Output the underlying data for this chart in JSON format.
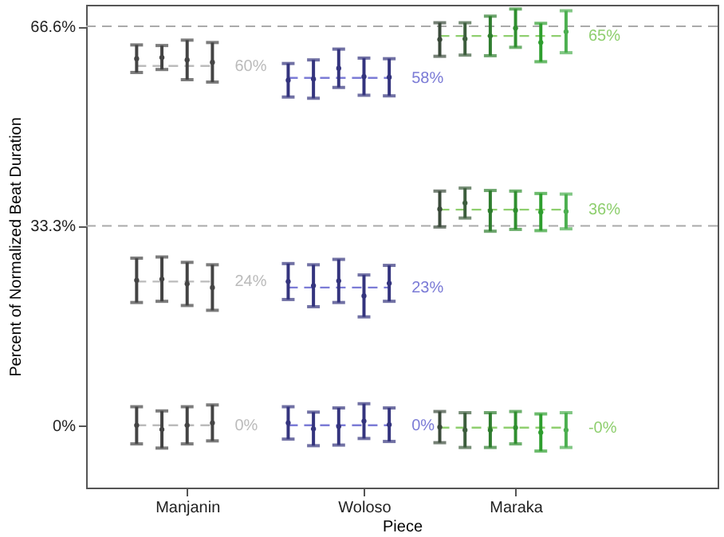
{
  "chart_data": {
    "type": "scatter",
    "xlabel": "Piece",
    "ylabel": "Percent of Normalized Beat Duration",
    "categories": [
      null,
      null,
      null,
      null,
      "Manjanin",
      null,
      null,
      null,
      null,
      null,
      null,
      "Woloso",
      null,
      null,
      null,
      null,
      null,
      "Maraka",
      null,
      null,
      null,
      null,
      null,
      null,
      null,
      null
    ],
    "ylim": [
      -10.4,
      70.2
    ],
    "yticks": [
      {
        "value": 0,
        "label": "0%"
      },
      {
        "value": 33.3,
        "label": "33.3%"
      },
      {
        "value": 66.6,
        "label": "66.6%"
      }
    ],
    "grid": false,
    "marker": "circle",
    "line_style": "dashed",
    "series": [
      {
        "type": "line",
        "marker": "none",
        "color": "#bbbbbb",
        "values": [
          null,
          null,
          60,
          60,
          60,
          60,
          null,
          null,
          null,
          null,
          null,
          null,
          null,
          null,
          null,
          null,
          null,
          null,
          null,
          null,
          null,
          null,
          null,
          null,
          null,
          null
        ],
        "value_labels": [
          null,
          null,
          null,
          null,
          null,
          "60%",
          null,
          null,
          null,
          null,
          null,
          null,
          null,
          null,
          null,
          null,
          null,
          null,
          null,
          null,
          null,
          null,
          null,
          null,
          null,
          null
        ]
      },
      {
        "type": "line",
        "marker": "none",
        "color": "#bbbbbb",
        "values": [
          null,
          null,
          24,
          24,
          24,
          24,
          null,
          null,
          null,
          null,
          null,
          null,
          null,
          null,
          null,
          null,
          null,
          null,
          null,
          null,
          null,
          null,
          null,
          null,
          null,
          null
        ],
        "value_labels": [
          null,
          null,
          null,
          null,
          null,
          "24%",
          null,
          null,
          null,
          null,
          null,
          null,
          null,
          null,
          null,
          null,
          null,
          null,
          null,
          null,
          null,
          null,
          null,
          null,
          null,
          null
        ]
      },
      {
        "type": "line",
        "marker": "none",
        "color": "#bbbbbb",
        "values": [
          null,
          null,
          0,
          0,
          0,
          0,
          null,
          null,
          null,
          null,
          null,
          null,
          null,
          null,
          null,
          null,
          null,
          null,
          null,
          null,
          null,
          null,
          null,
          null,
          null,
          null
        ],
        "value_labels": [
          null,
          null,
          null,
          null,
          null,
          "0%",
          null,
          null,
          null,
          null,
          null,
          null,
          null,
          null,
          null,
          null,
          null,
          null,
          null,
          null,
          null,
          null,
          null,
          null,
          null,
          null
        ]
      },
      {
        "type": "line",
        "marker": "none",
        "color": "#7b7bd6",
        "values": [
          null,
          null,
          null,
          null,
          null,
          null,
          null,
          null,
          58,
          58,
          58,
          58,
          58,
          null,
          null,
          null,
          null,
          null,
          null,
          null,
          null,
          null,
          null,
          null,
          null,
          null
        ],
        "value_labels": [
          null,
          null,
          null,
          null,
          null,
          null,
          null,
          null,
          null,
          null,
          null,
          null,
          "58%",
          null,
          null,
          null,
          null,
          null,
          null,
          null,
          null,
          null,
          null,
          null,
          null,
          null
        ]
      },
      {
        "type": "line",
        "marker": "none",
        "color": "#7b7bd6",
        "values": [
          null,
          null,
          null,
          null,
          null,
          null,
          null,
          null,
          23,
          23,
          23,
          23,
          23,
          null,
          null,
          null,
          null,
          null,
          null,
          null,
          null,
          null,
          null,
          null,
          null,
          null
        ],
        "value_labels": [
          null,
          null,
          null,
          null,
          null,
          null,
          null,
          null,
          null,
          null,
          null,
          null,
          "23%",
          null,
          null,
          null,
          null,
          null,
          null,
          null,
          null,
          null,
          null,
          null,
          null,
          null
        ]
      },
      {
        "type": "line",
        "marker": "none",
        "color": "#7b7bd6",
        "values": [
          null,
          null,
          null,
          null,
          null,
          null,
          null,
          null,
          0,
          0,
          0,
          0,
          0,
          null,
          null,
          null,
          null,
          null,
          null,
          null,
          null,
          null,
          null,
          null,
          null,
          null
        ],
        "value_labels": [
          null,
          null,
          null,
          null,
          null,
          null,
          null,
          null,
          null,
          null,
          null,
          null,
          "0%",
          null,
          null,
          null,
          null,
          null,
          null,
          null,
          null,
          null,
          null,
          null,
          null,
          null
        ]
      },
      {
        "type": "line",
        "marker": "none",
        "color": "#8fcf6f",
        "values": [
          null,
          null,
          null,
          null,
          null,
          null,
          null,
          null,
          null,
          null,
          null,
          null,
          null,
          null,
          65,
          65,
          65,
          65,
          65,
          65,
          null,
          null,
          null,
          null,
          null,
          null
        ],
        "value_labels": [
          null,
          null,
          null,
          null,
          null,
          null,
          null,
          null,
          null,
          null,
          null,
          null,
          null,
          null,
          null,
          null,
          null,
          null,
          null,
          "65%",
          null,
          null,
          null,
          null,
          null,
          null
        ]
      },
      {
        "type": "line",
        "marker": "none",
        "color": "#8fcf6f",
        "values": [
          null,
          null,
          null,
          null,
          null,
          null,
          null,
          null,
          null,
          null,
          null,
          null,
          null,
          null,
          36,
          36,
          36,
          36,
          36,
          36,
          null,
          null,
          null,
          null,
          null,
          null
        ],
        "value_labels": [
          null,
          null,
          null,
          null,
          null,
          null,
          null,
          null,
          null,
          null,
          null,
          null,
          null,
          null,
          null,
          null,
          null,
          null,
          null,
          "36%",
          null,
          null,
          null,
          null,
          null,
          null
        ]
      },
      {
        "type": "line",
        "marker": "none",
        "color": "#8fcf6f",
        "values": [
          null,
          null,
          null,
          null,
          null,
          null,
          null,
          null,
          null,
          null,
          null,
          null,
          null,
          null,
          -0.4,
          -0.4,
          -0.4,
          -0.4,
          -0.4,
          -0.4,
          null,
          null,
          null,
          null,
          null,
          null
        ],
        "value_labels": [
          null,
          null,
          null,
          null,
          null,
          null,
          null,
          null,
          null,
          null,
          null,
          null,
          null,
          null,
          null,
          null,
          null,
          null,
          null,
          "-0%",
          null,
          null,
          null,
          null,
          null,
          null
        ]
      },
      {
        "colors": [
          null,
          null,
          "#444444",
          "#444444",
          "#444444",
          "#444444",
          null,
          null,
          "#34347e",
          "#34347e",
          "#34347e",
          "#34347e",
          "#34347e",
          null,
          "#3a4a3a",
          "#3d5e3d",
          "#2e7d2e",
          "#2f8f2f",
          "#2e9e2e",
          "#4caf50",
          null,
          null,
          null,
          null,
          null,
          null
        ],
        "values": [
          null,
          null,
          61.2,
          61.4,
          61.0,
          60.6,
          null,
          null,
          57.6,
          57.8,
          59.6,
          58.2,
          58.1,
          null,
          64.4,
          64.5,
          65.0,
          66.3,
          63.9,
          65.7,
          null,
          null,
          null,
          null,
          null,
          null
        ],
        "errors": [
          null,
          null,
          2.3,
          2.0,
          3.3,
          3.3,
          null,
          null,
          2.8,
          3.2,
          3.2,
          3.1,
          3.1,
          null,
          2.8,
          2.7,
          3.3,
          3.2,
          3.2,
          3.5,
          null,
          null,
          null,
          null,
          null,
          null
        ]
      },
      {
        "colors": [
          null,
          null,
          "#444444",
          "#444444",
          "#444444",
          "#444444",
          null,
          null,
          "#34347e",
          "#34347e",
          "#34347e",
          "#34347e",
          "#34347e",
          null,
          "#3a4a3a",
          "#3d5e3d",
          "#2e7d2e",
          "#2f8f2f",
          "#2e9e2e",
          "#4caf50",
          null,
          null,
          null,
          null,
          null,
          null
        ],
        "values": [
          null,
          null,
          24.2,
          24.4,
          23.6,
          23.0,
          null,
          null,
          24.0,
          23.3,
          24.1,
          21.6,
          23.7,
          null,
          36.1,
          37.1,
          35.8,
          35.9,
          35.6,
          35.7,
          null,
          null,
          null,
          null,
          null,
          null
        ],
        "errors": [
          null,
          null,
          3.7,
          3.7,
          3.6,
          3.8,
          null,
          null,
          3.0,
          3.5,
          3.6,
          3.5,
          3.0,
          null,
          3.0,
          2.5,
          3.4,
          3.2,
          3.1,
          2.9,
          null,
          null,
          null,
          null,
          null,
          null
        ]
      },
      {
        "colors": [
          null,
          null,
          "#444444",
          "#444444",
          "#444444",
          "#444444",
          null,
          null,
          "#34347e",
          "#34347e",
          "#34347e",
          "#34347e",
          "#34347e",
          null,
          "#3a4a3a",
          "#3d5e3d",
          "#2e7d2e",
          "#2f8f2f",
          "#2e9e2e",
          "#4caf50",
          null,
          null,
          null,
          null,
          null,
          null
        ],
        "values": [
          null,
          null,
          0.0,
          -0.7,
          0.0,
          0.4,
          null,
          null,
          0.4,
          -0.6,
          -0.2,
          0.7,
          0.1,
          null,
          -0.3,
          -0.8,
          -0.8,
          -0.4,
          -1.2,
          -0.8,
          null,
          null,
          null,
          null,
          null,
          null
        ],
        "errors": [
          null,
          null,
          3.1,
          3.1,
          3.1,
          3.0,
          null,
          null,
          2.7,
          2.8,
          3.1,
          2.9,
          2.8,
          null,
          2.6,
          2.9,
          2.9,
          2.7,
          3.1,
          2.9,
          null,
          null,
          null,
          null,
          null,
          null
        ]
      }
    ],
    "ref_lines": [
      {
        "axis": "y",
        "value": 66.6,
        "color": "#aaaaaa",
        "line_style": "dashed"
      },
      {
        "axis": "y",
        "value": 33.3,
        "color": "#aaaaaa",
        "line_style": "dashed"
      }
    ]
  }
}
